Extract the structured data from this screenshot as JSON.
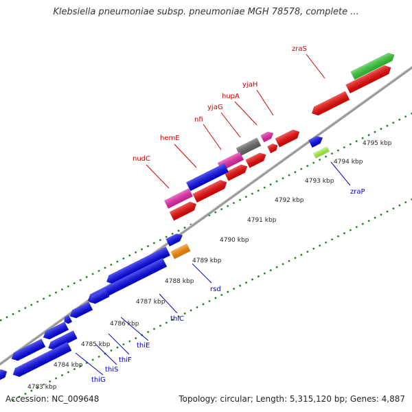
{
  "header": {
    "title": "Klebsiella pneumoniae subsp. pneumoniae MGH 78578, complete ..."
  },
  "footer": {
    "accession": "Accession: NC_009648",
    "stats": "Topology: circular; Length: 5,315,120 bp; Genes: 4,887"
  },
  "colors": {
    "forward_label": "#cc0000",
    "reverse_label": "#0000cc",
    "backbone": "#8c8c8c",
    "tick": "#1a7a1a",
    "red": "#ee0000",
    "blue": "#0000ee",
    "pink": "#ee22aa",
    "gray": "#666666",
    "green": "#33cc33",
    "orange": "#ff8800",
    "lightgray": "#bbbbbb",
    "lime": "#aaff44"
  },
  "ruler": [
    "4783 kbp",
    "4784 kbp",
    "4785 kbp",
    "4786 kbp",
    "4787 kbp",
    "4788 kbp",
    "4789 kbp",
    "4790 kbp",
    "4791 kbp",
    "4792 kbp",
    "4793 kbp",
    "4794 kbp",
    "4795 kbp"
  ],
  "forward_labels": [
    "nudC",
    "hemE",
    "nfi",
    "yjaG",
    "hupA",
    "yjaH",
    "zraS"
  ],
  "reverse_labels": [
    "thiG",
    "thiS",
    "thiF",
    "thiE",
    "thiC",
    "rsd",
    "zraP"
  ]
}
